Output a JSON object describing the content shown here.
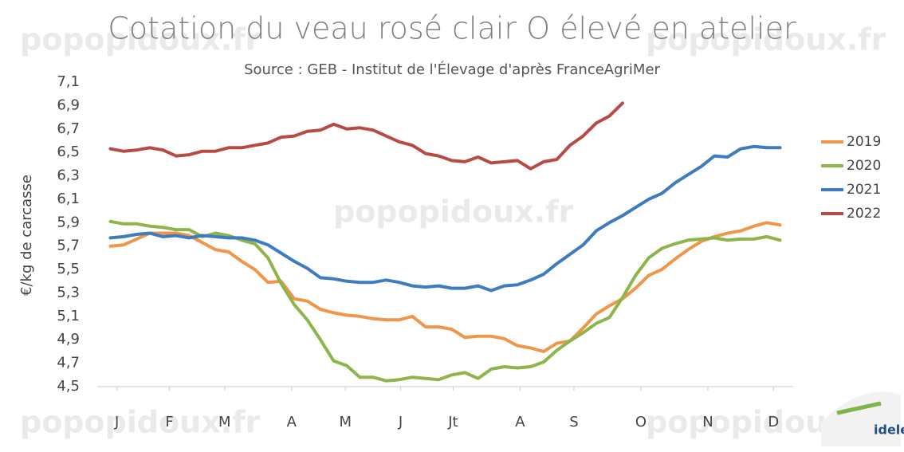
{
  "chart_data": {
    "type": "line",
    "title": "Cotation du veau rosé clair O élevé en atelier",
    "subtitle": "Source : GEB - Institut de l'Élevage d'après FranceAgriMer",
    "y_label": "€/kg de carcasse",
    "watermark": "popopidoux.fr",
    "logo_text": "idele",
    "x": [
      1,
      2,
      3,
      4,
      5,
      6,
      7,
      8,
      9,
      10,
      11,
      12,
      13,
      14,
      15,
      16,
      17,
      18,
      19,
      20,
      21,
      22,
      23,
      24,
      25,
      26,
      27,
      28,
      29,
      30,
      31,
      32,
      33,
      34,
      35,
      36,
      37,
      38,
      39,
      40,
      41,
      42,
      43,
      44,
      45,
      46,
      47,
      48,
      49,
      50,
      51,
      52
    ],
    "xlim": [
      0,
      53
    ],
    "xticks": [
      {
        "value": 1.5,
        "label": "J"
      },
      {
        "value": 5.5,
        "label": "F"
      },
      {
        "value": 9.7,
        "label": "M"
      },
      {
        "value": 14.8,
        "label": "A"
      },
      {
        "value": 18.9,
        "label": "M"
      },
      {
        "value": 23.1,
        "label": "J"
      },
      {
        "value": 27.1,
        "label": "Jt"
      },
      {
        "value": 32.2,
        "label": "A"
      },
      {
        "value": 36.3,
        "label": "S"
      },
      {
        "value": 41.4,
        "label": "O"
      },
      {
        "value": 46.5,
        "label": "N"
      },
      {
        "value": 51.5,
        "label": "D"
      }
    ],
    "ylim": [
      4.5,
      7.1
    ],
    "yticks": [
      {
        "value": 4.5,
        "label": "4,5"
      },
      {
        "value": 4.7,
        "label": "4,7"
      },
      {
        "value": 4.9,
        "label": "4,9"
      },
      {
        "value": 5.1,
        "label": "5,1"
      },
      {
        "value": 5.3,
        "label": "5,3"
      },
      {
        "value": 5.5,
        "label": "5,5"
      },
      {
        "value": 5.7,
        "label": "5,7"
      },
      {
        "value": 5.9,
        "label": "5,9"
      },
      {
        "value": 6.1,
        "label": "6,1"
      },
      {
        "value": 6.3,
        "label": "6,3"
      },
      {
        "value": 6.5,
        "label": "6,5"
      },
      {
        "value": 6.7,
        "label": "6,7"
      },
      {
        "value": 6.9,
        "label": "6,9"
      },
      {
        "value": 7.1,
        "label": "7,1"
      }
    ],
    "legend": "right",
    "series": [
      {
        "name": "2019",
        "color": "#f0964a",
        "values": [
          5.7,
          5.71,
          5.76,
          5.81,
          5.81,
          5.81,
          5.79,
          5.73,
          5.67,
          5.65,
          5.57,
          5.5,
          5.39,
          5.4,
          5.25,
          5.23,
          5.16,
          5.13,
          5.11,
          5.1,
          5.08,
          5.07,
          5.07,
          5.1,
          5.01,
          5.01,
          4.99,
          4.92,
          4.93,
          4.93,
          4.91,
          4.85,
          4.83,
          4.8,
          4.87,
          4.89,
          5.0,
          5.12,
          5.19,
          5.25,
          5.34,
          5.45,
          5.5,
          5.59,
          5.67,
          5.74,
          5.78,
          5.81,
          5.83,
          5.87,
          5.9,
          5.88
        ]
      },
      {
        "name": "2020",
        "color": "#8db54b",
        "values": [
          5.91,
          5.89,
          5.89,
          5.87,
          5.86,
          5.84,
          5.84,
          5.78,
          5.81,
          5.79,
          5.75,
          5.72,
          5.6,
          5.38,
          5.2,
          5.07,
          4.9,
          4.72,
          4.68,
          4.58,
          4.58,
          4.55,
          4.56,
          4.58,
          4.57,
          4.56,
          4.6,
          4.62,
          4.57,
          4.65,
          4.67,
          4.66,
          4.67,
          4.71,
          4.81,
          4.89,
          4.96,
          5.04,
          5.09,
          5.26,
          5.45,
          5.6,
          5.68,
          5.72,
          5.75,
          5.76,
          5.77,
          5.75,
          5.76,
          5.76,
          5.78,
          5.75
        ]
      },
      {
        "name": "2021",
        "color": "#3f7bbf",
        "values": [
          5.77,
          5.78,
          5.8,
          5.81,
          5.78,
          5.79,
          5.77,
          5.79,
          5.78,
          5.77,
          5.77,
          5.75,
          5.71,
          5.64,
          5.57,
          5.51,
          5.43,
          5.42,
          5.4,
          5.39,
          5.39,
          5.41,
          5.39,
          5.36,
          5.35,
          5.36,
          5.34,
          5.34,
          5.36,
          5.32,
          5.36,
          5.37,
          5.41,
          5.46,
          5.55,
          5.63,
          5.71,
          5.83,
          5.9,
          5.96,
          6.03,
          6.1,
          6.15,
          6.24,
          6.31,
          6.38,
          6.47,
          6.46,
          6.53,
          6.55,
          6.54,
          6.54
        ]
      },
      {
        "name": "2022",
        "color": "#b84a45",
        "values": [
          6.53,
          6.51,
          6.52,
          6.54,
          6.52,
          6.47,
          6.48,
          6.51,
          6.51,
          6.54,
          6.54,
          6.56,
          6.58,
          6.63,
          6.64,
          6.68,
          6.69,
          6.74,
          6.7,
          6.71,
          6.69,
          6.64,
          6.59,
          6.56,
          6.49,
          6.47,
          6.43,
          6.42,
          6.46,
          6.41,
          6.42,
          6.43,
          6.36,
          6.42,
          6.44,
          6.56,
          6.64,
          6.75,
          6.81,
          6.92,
          null,
          null,
          null,
          null,
          null,
          null,
          null,
          null,
          null,
          null,
          null,
          null
        ]
      }
    ]
  }
}
